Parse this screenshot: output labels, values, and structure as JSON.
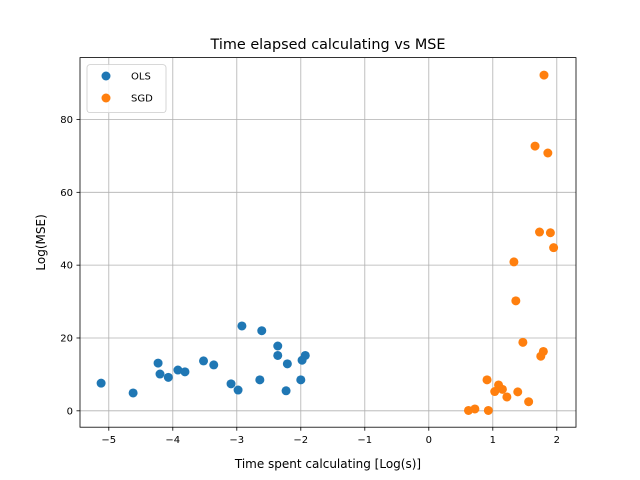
{
  "chart_data": {
    "type": "scatter",
    "title": "Time elapsed calculating vs MSE",
    "xlabel": "Time spent calculating [Log(s)]",
    "ylabel": "Log(MSE)",
    "xlim": [
      -5.45,
      2.3
    ],
    "ylim": [
      -4.5,
      97
    ],
    "xticks": [
      -5,
      -4,
      -3,
      -2,
      -1,
      0,
      1,
      2
    ],
    "yticks": [
      0,
      20,
      40,
      60,
      80
    ],
    "grid": true,
    "legend_position": "upper-left",
    "series": [
      {
        "name": "OLS",
        "color": "#1f77b4",
        "points": [
          {
            "x": -5.12,
            "y": 7.6
          },
          {
            "x": -4.62,
            "y": 4.9
          },
          {
            "x": -4.23,
            "y": 13.1
          },
          {
            "x": -4.2,
            "y": 10.1
          },
          {
            "x": -4.07,
            "y": 9.2
          },
          {
            "x": -3.92,
            "y": 11.2
          },
          {
            "x": -3.81,
            "y": 10.7
          },
          {
            "x": -3.52,
            "y": 13.7
          },
          {
            "x": -3.36,
            "y": 12.6
          },
          {
            "x": -3.09,
            "y": 7.4
          },
          {
            "x": -2.98,
            "y": 5.7
          },
          {
            "x": -2.92,
            "y": 23.3
          },
          {
            "x": -2.64,
            "y": 8.5
          },
          {
            "x": -2.61,
            "y": 22.0
          },
          {
            "x": -2.36,
            "y": 17.8
          },
          {
            "x": -2.36,
            "y": 15.2
          },
          {
            "x": -2.23,
            "y": 5.5
          },
          {
            "x": -2.21,
            "y": 12.9
          },
          {
            "x": -2.0,
            "y": 8.5
          },
          {
            "x": -1.98,
            "y": 13.9
          },
          {
            "x": -1.93,
            "y": 15.2
          }
        ]
      },
      {
        "name": "SGD",
        "color": "#ff7f0e",
        "points": [
          {
            "x": 0.62,
            "y": 0.1
          },
          {
            "x": 0.72,
            "y": 0.5
          },
          {
            "x": 0.91,
            "y": 8.5
          },
          {
            "x": 0.93,
            "y": 0.1
          },
          {
            "x": 1.03,
            "y": 5.3
          },
          {
            "x": 1.09,
            "y": 7.1
          },
          {
            "x": 1.15,
            "y": 5.9
          },
          {
            "x": 1.22,
            "y": 3.8
          },
          {
            "x": 1.33,
            "y": 40.9
          },
          {
            "x": 1.36,
            "y": 30.2
          },
          {
            "x": 1.39,
            "y": 5.2
          },
          {
            "x": 1.47,
            "y": 18.8
          },
          {
            "x": 1.56,
            "y": 2.5
          },
          {
            "x": 1.66,
            "y": 72.7
          },
          {
            "x": 1.73,
            "y": 49.1
          },
          {
            "x": 1.75,
            "y": 15.0
          },
          {
            "x": 1.79,
            "y": 16.3
          },
          {
            "x": 1.8,
            "y": 92.2
          },
          {
            "x": 1.86,
            "y": 70.8
          },
          {
            "x": 1.9,
            "y": 48.9
          },
          {
            "x": 1.95,
            "y": 44.8
          }
        ]
      }
    ]
  }
}
